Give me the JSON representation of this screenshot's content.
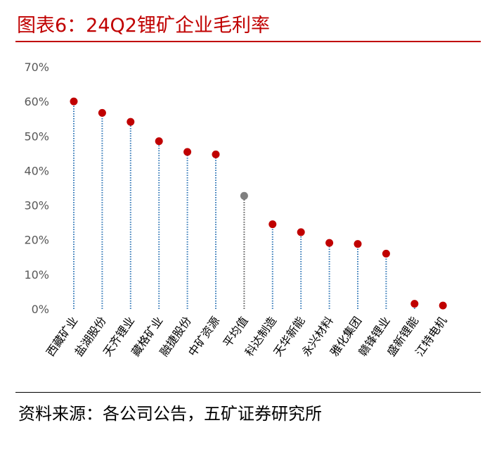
{
  "header": {
    "title": "图表6：24Q2锂矿企业毛利率"
  },
  "footer": {
    "source": "资料来源：各公司公告，五矿证券研究所"
  },
  "colors": {
    "accent": "#c00000",
    "dot": "#c00000",
    "average_dot": "#808080",
    "stem": "#2e75b6",
    "average_stem": "#595959"
  },
  "chart_data": {
    "type": "scatter",
    "title": "",
    "xlabel": "",
    "ylabel": "",
    "ylim": [
      0,
      70
    ],
    "yticks": [
      "0%",
      "10%",
      "20%",
      "30%",
      "40%",
      "50%",
      "60%",
      "70%"
    ],
    "grid": false,
    "categories": [
      "西藏矿业",
      "盐湖股份",
      "天齐锂业",
      "藏格矿业",
      "融捷股份",
      "中矿资源",
      "平均值",
      "科达制造",
      "天华新能",
      "永兴材料",
      "雅化集团",
      "赣锋锂业",
      "盛新锂能",
      "江特电机"
    ],
    "values": [
      60,
      56.7,
      54.1,
      48.5,
      45.4,
      44.7,
      32.7,
      24.5,
      22.2,
      19.1,
      18.8,
      16.0,
      1.5,
      1.0
    ],
    "highlight_category": "平均值"
  }
}
